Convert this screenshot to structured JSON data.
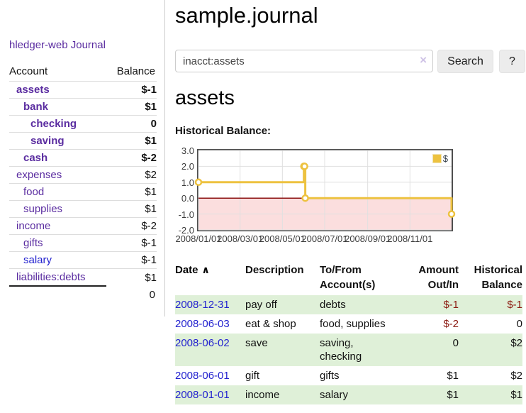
{
  "sidebar": {
    "app_title": "hledger-web",
    "journal_link": "Journal",
    "accounts_header": {
      "account": "Account",
      "balance": "Balance"
    },
    "accounts": [
      {
        "name": "assets",
        "balance": "$-1"
      },
      {
        "name": "bank",
        "balance": "$1"
      },
      {
        "name": "checking",
        "balance": "0"
      },
      {
        "name": "saving",
        "balance": "$1"
      },
      {
        "name": "cash",
        "balance": "$-2"
      },
      {
        "name": "expenses",
        "balance": "$2"
      },
      {
        "name": "food",
        "balance": "$1"
      },
      {
        "name": "supplies",
        "balance": "$1"
      },
      {
        "name": "income",
        "balance": "$-2"
      },
      {
        "name": "gifts",
        "balance": "$-1"
      },
      {
        "name": "salary",
        "balance": "$-1"
      },
      {
        "name": "liabilities:debts",
        "balance": "$1"
      }
    ],
    "total": "0"
  },
  "main": {
    "title": "sample.journal",
    "search": {
      "value": "inacct:assets",
      "clear_icon": "×",
      "button_label": "Search",
      "help_label": "?"
    },
    "account_heading": "assets",
    "chart_title": "Historical Balance:",
    "table": {
      "headers": {
        "date": "Date",
        "sort_icon": "∧",
        "description": "Description",
        "tofrom": "To/From Account(s)",
        "amount": "Amount Out/In",
        "balance": "Historical Balance"
      },
      "rows": [
        {
          "date": "2008-12-31",
          "description": "pay off",
          "accounts": "debts",
          "amount": "$-1",
          "balance": "$-1"
        },
        {
          "date": "2008-06-03",
          "description": "eat & shop",
          "accounts": "food, supplies",
          "amount": "$-2",
          "balance": "0"
        },
        {
          "date": "2008-06-02",
          "description": "save",
          "accounts": "saving, checking",
          "amount": "0",
          "balance": "$2"
        },
        {
          "date": "2008-06-01",
          "description": "gift",
          "accounts": "gifts",
          "amount": "$1",
          "balance": "$2"
        },
        {
          "date": "2008-01-01",
          "description": "income",
          "accounts": "salary",
          "amount": "$1",
          "balance": "$1"
        }
      ]
    }
  },
  "chart_data": {
    "type": "line",
    "step": true,
    "title": "Historical Balance:",
    "series": [
      {
        "name": "$",
        "color": "#EDC240",
        "points": [
          [
            "2008-01-01",
            1
          ],
          [
            "2008-06-01",
            2
          ],
          [
            "2008-06-02",
            2
          ],
          [
            "2008-06-03",
            0
          ],
          [
            "2008-12-31",
            -1
          ]
        ]
      }
    ],
    "x_ticks": [
      "2008/01/01",
      "2008/03/01",
      "2008/05/01",
      "2008/07/01",
      "2008/09/01",
      "2008/11/01"
    ],
    "y_tick_labels": [
      "3.0",
      "2.0",
      "1.0",
      "0.0",
      "-1.0",
      "-2.0"
    ],
    "xlim": [
      "2008-01-01",
      "2008-12-31"
    ],
    "ylim": [
      -2,
      3
    ],
    "grid": true,
    "grid_color": "#e0e0e0",
    "negative_fill": "#fbdede",
    "zero_line_color": "#8b1010",
    "legend_position": "top-right"
  }
}
